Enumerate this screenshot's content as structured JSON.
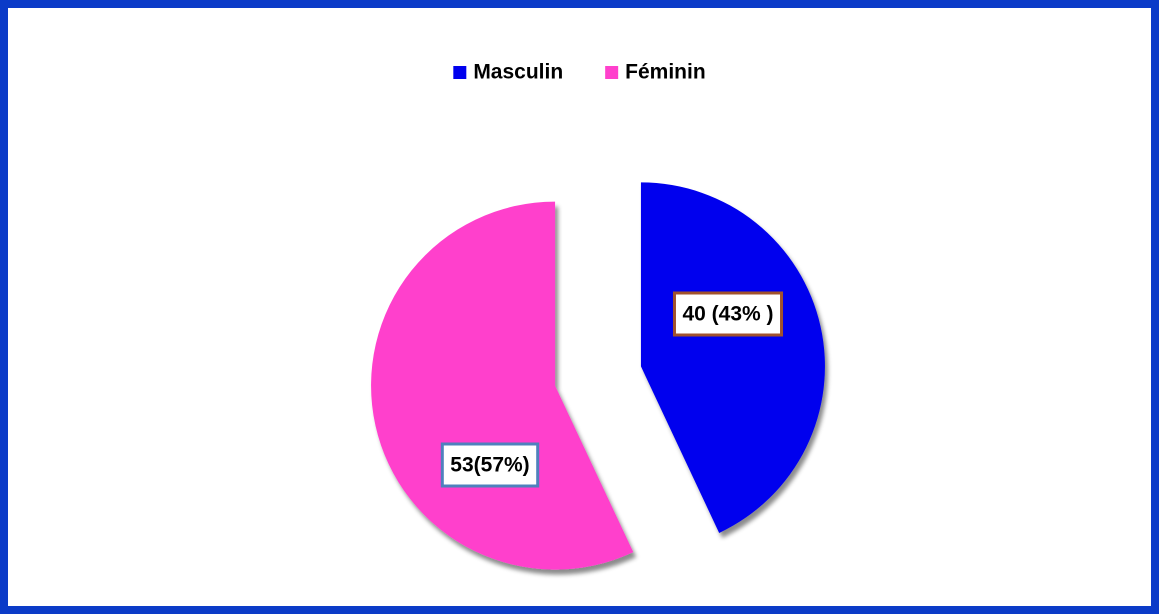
{
  "chart_data": {
    "type": "pie",
    "categories": [
      "Masculin",
      "Féminin"
    ],
    "values": [
      40,
      53
    ],
    "value_labels": [
      "40 (43% )",
      "53(57%)"
    ],
    "colors": [
      "#0000ee",
      "#ff40cc"
    ],
    "legend": "top"
  }
}
